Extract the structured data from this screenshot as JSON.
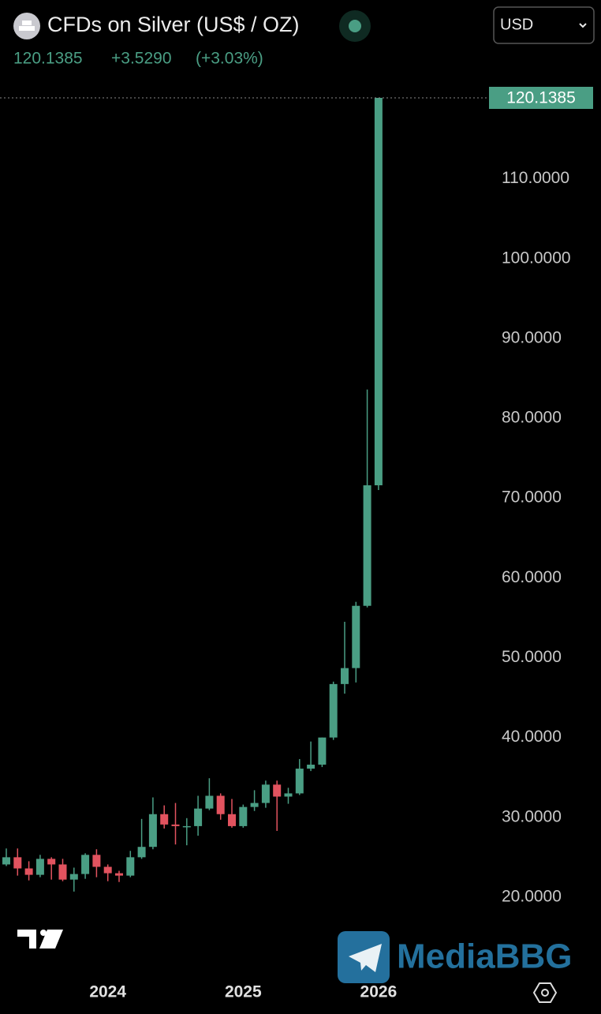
{
  "header": {
    "title": "CFDs on Silver (US$ / OZ)",
    "change": "+3.5290",
    "change_percent": "(+3.03%)",
    "currency": "USD"
  },
  "chart_data": {
    "type": "candlestick",
    "categories": [
      null,
      null,
      null,
      null,
      null,
      null,
      null,
      null,
      null,
      "2024",
      null,
      null,
      null,
      null,
      null,
      null,
      null,
      null,
      null,
      null,
      null,
      "2025",
      null,
      null,
      null,
      null,
      null,
      null,
      null,
      null,
      null,
      null,
      null,
      "2026"
    ],
    "open": [
      24.1,
      25.0,
      23.6,
      22.8,
      24.8,
      24.1,
      22.2,
      22.9,
      25.3,
      23.8,
      23.0,
      22.7,
      25.0,
      26.3,
      30.4,
      29.1,
      28.9,
      28.9,
      31.1,
      32.7,
      30.4,
      28.9,
      31.3,
      31.8,
      34.1,
      32.6,
      33.0,
      36.1,
      36.6,
      40.0,
      46.7,
      48.7,
      56.5,
      71.6
    ],
    "high": [
      26.1,
      26.1,
      24.5,
      25.3,
      25.0,
      24.8,
      23.7,
      25.5,
      26.0,
      24.1,
      23.3,
      25.8,
      29.8,
      32.5,
      31.5,
      31.8,
      29.9,
      32.7,
      34.9,
      33.0,
      32.3,
      31.6,
      33.4,
      34.6,
      34.6,
      33.7,
      37.3,
      39.5,
      40.0,
      47.0,
      54.5,
      57.0,
      83.6,
      120.1385
    ],
    "low": [
      23.9,
      22.7,
      22.1,
      22.5,
      22.2,
      22.0,
      20.7,
      22.3,
      22.5,
      22.0,
      21.9,
      22.5,
      24.8,
      26.0,
      28.6,
      26.6,
      26.5,
      27.7,
      30.9,
      29.7,
      28.7,
      28.7,
      30.8,
      31.2,
      28.3,
      31.7,
      32.8,
      35.8,
      36.3,
      39.7,
      45.5,
      46.9,
      56.3,
      71.0
    ],
    "close": [
      25.0,
      23.6,
      22.8,
      24.8,
      24.1,
      22.2,
      22.9,
      25.3,
      23.8,
      23.0,
      22.7,
      25.0,
      26.3,
      30.4,
      29.1,
      28.9,
      28.9,
      31.1,
      32.7,
      30.4,
      28.9,
      31.3,
      31.8,
      34.1,
      32.6,
      33.0,
      36.1,
      36.6,
      40.0,
      46.7,
      48.7,
      56.5,
      71.6,
      120.1385
    ],
    "up_color": "#4a9e84",
    "down_color": "#e2535f",
    "ylim": [
      10.8,
      123.5
    ],
    "yticks": [
      {
        "value": 20,
        "label": "20.0000"
      },
      {
        "value": 30,
        "label": "30.0000"
      },
      {
        "value": 40,
        "label": "40.0000"
      },
      {
        "value": 50,
        "label": "50.0000"
      },
      {
        "value": 60,
        "label": "60.0000"
      },
      {
        "value": 70,
        "label": "70.0000"
      },
      {
        "value": 80,
        "label": "80.0000"
      },
      {
        "value": 90,
        "label": "90.0000"
      },
      {
        "value": 100,
        "label": "100.0000"
      },
      {
        "value": 110,
        "label": "110.0000"
      }
    ]
  },
  "watermark": "MediaBBG"
}
